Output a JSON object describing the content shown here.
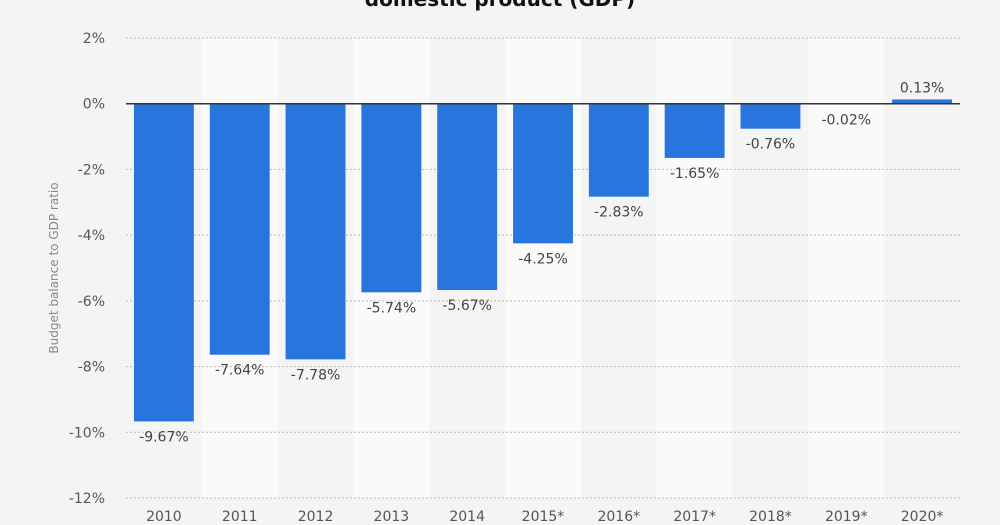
{
  "chart_data": {
    "type": "bar",
    "title": "domestic product (GDP)",
    "xlabel": "",
    "ylabel": "Budget balance to GDP ratio",
    "categories": [
      "2010",
      "2011",
      "2012",
      "2013",
      "2014",
      "2015*",
      "2016*",
      "2017*",
      "2018*",
      "2019*",
      "2020*"
    ],
    "values": [
      -9.67,
      -7.64,
      -7.78,
      -5.74,
      -5.67,
      -4.25,
      -2.83,
      -1.65,
      -0.76,
      -0.02,
      0.13
    ],
    "value_labels": [
      "-9.67%",
      "-7.64%",
      "-7.78%",
      "-5.74%",
      "-5.67%",
      "-4.25%",
      "-2.83%",
      "-1.65%",
      "-0.76%",
      "-0.02%",
      "0.13%"
    ],
    "ylim": [
      -12,
      2
    ],
    "yticks": [
      2,
      0,
      -2,
      -4,
      -6,
      -8,
      -10,
      -12
    ],
    "ytick_labels": [
      "2%",
      "0%",
      "-2%",
      "-4%",
      "-6%",
      "-8%",
      "-10%",
      "-12%"
    ],
    "grid": true,
    "colors": {
      "bar": "#2876dd",
      "background": "#f4f4f4",
      "band_alt": "#fafafa",
      "grid": "#bbbbbb",
      "zero_line": "#333333"
    }
  }
}
